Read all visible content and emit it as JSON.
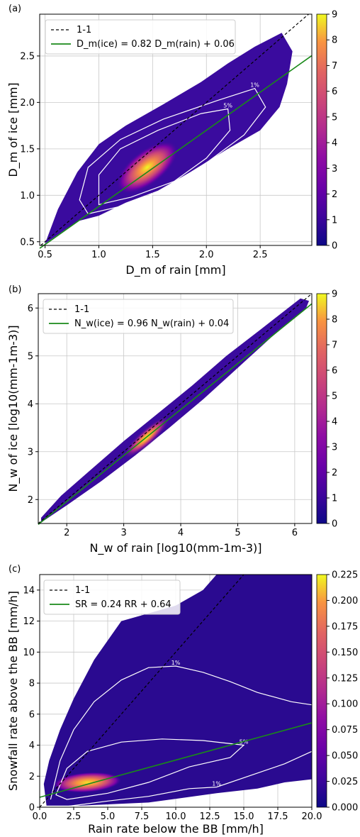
{
  "chart_data": [
    {
      "type": "heatmap",
      "panel": "(a)",
      "xlabel": "D_m of rain [mm]",
      "ylabel": "D_m of ice [mm]",
      "xlim": [
        0.45,
        2.98
      ],
      "ylim": [
        0.46,
        2.95
      ],
      "xticks": [
        0.5,
        1.0,
        1.5,
        2.0,
        2.5
      ],
      "yticks": [
        0.5,
        1.0,
        1.5,
        2.0,
        2.5
      ],
      "xtick_labels": [
        "0.5",
        "1.0",
        "1.5",
        "2.0",
        "2.5"
      ],
      "ytick_labels": [
        "0.5",
        "1.0",
        "1.5",
        "2.0",
        "2.5"
      ],
      "grid": true,
      "legend_position": "top-left",
      "legend": [
        {
          "label": "1-1",
          "style": "dashed",
          "color": "#000000"
        },
        {
          "label": "D_m(ice) = 0.82 D_m(rain) + 0.06",
          "style": "solid",
          "color": "#1a8a1a"
        }
      ],
      "one_to_one": true,
      "fit": {
        "slope": 0.82,
        "intercept": 0.06
      },
      "density_center": [
        1.45,
        1.3
      ],
      "cloud_polygon": [
        [
          0.5,
          0.48
        ],
        [
          0.8,
          0.72
        ],
        [
          1.0,
          0.78
        ],
        [
          1.25,
          0.92
        ],
        [
          1.55,
          1.05
        ],
        [
          1.85,
          1.25
        ],
        [
          2.2,
          1.5
        ],
        [
          2.5,
          1.7
        ],
        [
          2.68,
          1.95
        ],
        [
          2.75,
          2.2
        ],
        [
          2.8,
          2.55
        ],
        [
          2.7,
          2.75
        ],
        [
          2.45,
          2.6
        ],
        [
          2.2,
          2.42
        ],
        [
          1.95,
          2.22
        ],
        [
          1.6,
          1.98
        ],
        [
          1.25,
          1.75
        ],
        [
          1.0,
          1.55
        ],
        [
          0.8,
          1.25
        ],
        [
          0.62,
          0.85
        ]
      ],
      "contours": [
        {
          "label": "1%",
          "points": [
            [
              0.9,
              0.8
            ],
            [
              1.2,
              0.88
            ],
            [
              1.6,
              1.05
            ],
            [
              2.0,
              1.35
            ],
            [
              2.35,
              1.65
            ],
            [
              2.55,
              1.95
            ],
            [
              2.45,
              2.15
            ],
            [
              2.1,
              2.02
            ],
            [
              1.6,
              1.82
            ],
            [
              1.2,
              1.6
            ],
            [
              0.9,
              1.3
            ],
            [
              0.82,
              0.95
            ]
          ]
        },
        {
          "label": "5%",
          "points": [
            [
              1.0,
              0.9
            ],
            [
              1.3,
              0.98
            ],
            [
              1.7,
              1.15
            ],
            [
              2.0,
              1.4
            ],
            [
              2.22,
              1.7
            ],
            [
              2.2,
              1.93
            ],
            [
              1.95,
              1.88
            ],
            [
              1.55,
              1.7
            ],
            [
              1.2,
              1.5
            ],
            [
              1.0,
              1.22
            ]
          ]
        }
      ],
      "colorbar": {
        "min": 0,
        "max": 9,
        "ticks": [
          "0",
          "1",
          "2",
          "3",
          "4",
          "5",
          "6",
          "7",
          "8",
          "9"
        ]
      }
    },
    {
      "type": "heatmap",
      "panel": "(b)",
      "xlabel": "N_w of rain [log10(mm-1m-3)]",
      "ylabel": "N_w of ice [log10(mm-1m-3)]",
      "xlim": [
        1.5,
        6.3
      ],
      "ylim": [
        1.5,
        6.3
      ],
      "xticks": [
        2,
        3,
        4,
        5,
        6
      ],
      "yticks": [
        2,
        3,
        4,
        5,
        6
      ],
      "xtick_labels": [
        "2",
        "3",
        "4",
        "5",
        "6"
      ],
      "ytick_labels": [
        "2",
        "3",
        "4",
        "5",
        "6"
      ],
      "grid": true,
      "legend_position": "top-left",
      "legend": [
        {
          "label": "1-1",
          "style": "dashed",
          "color": "#000000"
        },
        {
          "label": "N_w(ice) = 0.96 N_w(rain) + 0.04",
          "style": "solid",
          "color": "#1a8a1a"
        }
      ],
      "one_to_one": true,
      "fit": {
        "slope": 0.96,
        "intercept": 0.04
      },
      "density_center": [
        3.4,
        3.3
      ],
      "cloud_polygon": [
        [
          1.55,
          1.52
        ],
        [
          2.0,
          1.88
        ],
        [
          2.6,
          2.38
        ],
        [
          3.2,
          2.92
        ],
        [
          3.8,
          3.5
        ],
        [
          4.4,
          4.1
        ],
        [
          5.0,
          4.75
        ],
        [
          5.6,
          5.4
        ],
        [
          6.2,
          6.0
        ],
        [
          6.25,
          6.15
        ],
        [
          6.1,
          6.2
        ],
        [
          5.4,
          5.55
        ],
        [
          4.8,
          5.0
        ],
        [
          4.2,
          4.38
        ],
        [
          3.6,
          3.8
        ],
        [
          3.0,
          3.22
        ],
        [
          2.4,
          2.6
        ],
        [
          1.9,
          2.08
        ],
        [
          1.55,
          1.62
        ]
      ],
      "colorbar": {
        "min": 0,
        "max": 9,
        "ticks": [
          "0",
          "1",
          "2",
          "3",
          "4",
          "5",
          "6",
          "7",
          "8",
          "9"
        ]
      }
    },
    {
      "type": "heatmap",
      "panel": "(c)",
      "xlabel": "Rain rate below the BB [mm/h]",
      "ylabel": "Snowfall rate above the BB [mm/h]",
      "xlim": [
        0,
        20
      ],
      "ylim": [
        0,
        15
      ],
      "xticks": [
        0,
        2.5,
        5,
        7.5,
        10,
        12.5,
        15,
        17.5,
        20
      ],
      "yticks": [
        0,
        2,
        4,
        6,
        8,
        10,
        12,
        14
      ],
      "xtick_labels": [
        "0.0",
        "2.5",
        "5.0",
        "7.5",
        "10.0",
        "12.5",
        "15.0",
        "17.5",
        "20.0"
      ],
      "ytick_labels": [
        "0",
        "2",
        "4",
        "6",
        "8",
        "10",
        "12",
        "14"
      ],
      "grid": true,
      "legend_position": "top-left",
      "legend": [
        {
          "label": "1-1",
          "style": "dashed",
          "color": "#000000"
        },
        {
          "label": "SR = 0.24 RR + 0.64",
          "style": "solid",
          "color": "#1a8a1a"
        }
      ],
      "one_to_one": true,
      "fit": {
        "slope": 0.24,
        "intercept": 0.64
      },
      "density_center": [
        3.5,
        1.6
      ],
      "cloud_polygon": [
        [
          0.5,
          0.1
        ],
        [
          3,
          0.1
        ],
        [
          8,
          0.3
        ],
        [
          13,
          0.9
        ],
        [
          16,
          1.2
        ],
        [
          18,
          1.6
        ],
        [
          20,
          1.8
        ],
        [
          20,
          15
        ],
        [
          13,
          15
        ],
        [
          12,
          14
        ],
        [
          10,
          13
        ],
        [
          8,
          12.5
        ],
        [
          6,
          12
        ],
        [
          4,
          9.5
        ],
        [
          2.5,
          7
        ],
        [
          1.5,
          5
        ],
        [
          0.7,
          3
        ],
        [
          0.3,
          1.5
        ]
      ],
      "contours": [
        {
          "label": "1%",
          "points": [
            [
              0.8,
              0.5
            ],
            [
              1.5,
              3.0
            ],
            [
              2.5,
              5.0
            ],
            [
              4.0,
              6.8
            ],
            [
              6.0,
              8.2
            ],
            [
              8.0,
              9.0
            ],
            [
              10.0,
              9.1
            ],
            [
              12.0,
              8.7
            ],
            [
              14.0,
              8.1
            ],
            [
              16.0,
              7.4
            ],
            [
              18.5,
              6.8
            ],
            [
              20.0,
              6.6
            ]
          ]
        },
        {
          "label": "1%",
          "points": [
            [
              2.0,
              0.05
            ],
            [
              5.0,
              0.4
            ],
            [
              8.0,
              0.7
            ],
            [
              11.0,
              1.2
            ],
            [
              13.0,
              1.3
            ],
            [
              16.0,
              2.2
            ],
            [
              18.0,
              2.8
            ],
            [
              20.0,
              3.6
            ]
          ]
        },
        {
          "label": "5%",
          "points": [
            [
              1.2,
              0.8
            ],
            [
              2.0,
              2.5
            ],
            [
              3.5,
              3.6
            ],
            [
              6.0,
              4.2
            ],
            [
              9.0,
              4.4
            ],
            [
              12.0,
              4.3
            ],
            [
              15.0,
              4.0
            ],
            [
              14.0,
              3.2
            ],
            [
              11.0,
              2.6
            ],
            [
              8.0,
              1.6
            ],
            [
              5.0,
              0.9
            ],
            [
              2.0,
              0.5
            ]
          ]
        }
      ],
      "colorbar": {
        "min": 0.0,
        "max": 0.225,
        "ticks": [
          "0.000",
          "0.025",
          "0.050",
          "0.075",
          "0.100",
          "0.125",
          "0.150",
          "0.175",
          "0.200",
          "0.225"
        ]
      }
    }
  ]
}
